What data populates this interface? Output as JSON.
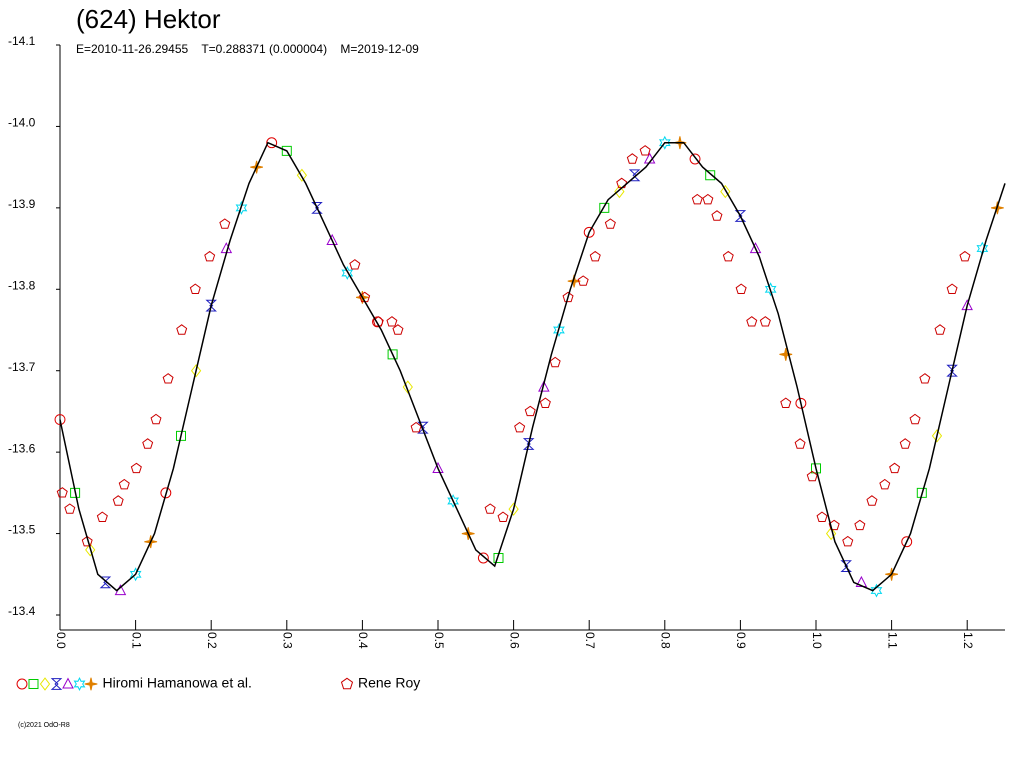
{
  "chart_data": {
    "type": "scatter",
    "title": "(624) Hektor",
    "subtitle": "E=2010-11-26.29455    T=0.288371 (0.000004)    M=2019-12-09",
    "footer": "(c)2021 OdO-R8",
    "xlim": [
      0,
      1.25
    ],
    "ylim": [
      -13.4,
      -14.1
    ],
    "xticks": [
      {
        "value": 0,
        "label": "0.0"
      },
      0.1,
      0.2,
      0.3,
      0.4,
      0.5,
      0.6,
      0.7,
      0.8,
      0.9,
      {
        "value": 1,
        "label": "1.0"
      },
      1.1,
      1.2
    ],
    "yticks": [
      -14.1,
      {
        "value": -14,
        "label": "-14.0"
      },
      -13.9,
      -13.8,
      -13.7,
      -13.6,
      -13.5,
      -13.4
    ],
    "series": [
      {
        "name": "Hiromi Hamanowa et al.",
        "styles": [
          {
            "marker": "circle",
            "color": "#e00000"
          },
          {
            "marker": "square",
            "color": "#00cc00"
          },
          {
            "marker": "diamond",
            "color": "#e8e800"
          },
          {
            "marker": "bowtie",
            "color": "#2020c0"
          },
          {
            "marker": "triangle",
            "color": "#9900cc"
          },
          {
            "marker": "star",
            "color": "#00d8f0"
          },
          {
            "marker": "cross",
            "color": "#e08000"
          }
        ],
        "x": [
          0.0,
          0.02,
          0.04,
          0.06,
          0.08,
          0.1,
          0.12,
          0.14,
          0.16,
          0.18,
          0.2,
          0.22,
          0.24,
          0.26,
          0.28,
          0.3,
          0.32,
          0.34,
          0.36,
          0.38,
          0.4,
          0.42,
          0.44,
          0.46,
          0.48,
          0.5,
          0.52,
          0.54,
          0.56,
          0.58,
          0.6,
          0.62,
          0.64,
          0.66,
          0.68,
          0.7,
          0.72,
          0.74,
          0.76,
          0.78,
          0.8,
          0.82,
          0.84,
          0.86,
          0.88,
          0.9,
          0.92,
          0.94,
          0.96,
          0.98,
          1.0,
          1.02,
          1.04,
          1.06,
          1.08,
          1.1,
          1.12,
          1.14,
          1.16,
          1.18,
          1.2,
          1.22,
          1.24
        ],
        "values": [
          -13.64,
          -13.55,
          -13.48,
          -13.44,
          -13.43,
          -13.45,
          -13.49,
          -13.55,
          -13.62,
          -13.7,
          -13.78,
          -13.85,
          -13.9,
          -13.95,
          -13.98,
          -13.97,
          -13.94,
          -13.9,
          -13.86,
          -13.82,
          -13.79,
          -13.76,
          -13.72,
          -13.68,
          -13.63,
          -13.58,
          -13.54,
          -13.5,
          -13.47,
          -13.47,
          -13.53,
          -13.61,
          -13.68,
          -13.75,
          -13.81,
          -13.87,
          -13.9,
          -13.92,
          -13.94,
          -13.96,
          -13.98,
          -13.98,
          -13.96,
          -13.94,
          -13.92,
          -13.89,
          -13.85,
          -13.8,
          -13.72,
          -13.66,
          -13.58,
          -13.5,
          -13.46,
          -13.44,
          -13.43,
          -13.45,
          -13.49,
          -13.55,
          -13.62,
          -13.7,
          -13.78,
          -13.85,
          -13.9
        ]
      },
      {
        "name": "Rene Roy",
        "marker": "pentagon",
        "color": "#cc0000",
        "x": [
          0.003,
          0.013,
          0.036,
          0.056,
          0.077,
          0.085,
          0.101,
          0.116,
          0.127,
          0.143,
          0.161,
          0.179,
          0.198,
          0.218,
          0.39,
          0.403,
          0.421,
          0.439,
          0.447,
          0.471,
          0.569,
          0.586,
          0.608,
          0.622,
          0.642,
          0.655,
          0.672,
          0.692,
          0.708,
          0.728,
          0.743,
          0.757,
          0.774,
          0.843,
          0.857,
          0.869,
          0.884,
          0.901,
          0.915,
          0.933,
          0.96,
          0.979,
          0.995,
          1.008,
          1.024,
          1.042,
          1.058,
          1.074,
          1.091,
          1.104,
          1.118,
          1.131,
          1.144,
          1.164,
          1.18,
          1.197
        ],
        "values": [
          -13.55,
          -13.53,
          -13.49,
          -13.52,
          -13.54,
          -13.56,
          -13.58,
          -13.61,
          -13.64,
          -13.69,
          -13.75,
          -13.8,
          -13.84,
          -13.88,
          -13.83,
          -13.79,
          -13.76,
          -13.76,
          -13.75,
          -13.63,
          -13.53,
          -13.52,
          -13.63,
          -13.65,
          -13.66,
          -13.71,
          -13.79,
          -13.81,
          -13.84,
          -13.88,
          -13.93,
          -13.96,
          -13.97,
          -13.91,
          -13.91,
          -13.89,
          -13.84,
          -13.8,
          -13.76,
          -13.76,
          -13.66,
          -13.61,
          -13.57,
          -13.52,
          -13.51,
          -13.49,
          -13.51,
          -13.54,
          -13.56,
          -13.58,
          -13.61,
          -13.64,
          -13.69,
          -13.75,
          -13.8,
          -13.84
        ]
      },
      {
        "type": "line",
        "color": "#000000",
        "x": [
          0,
          0.025,
          0.05,
          0.075,
          0.1,
          0.125,
          0.15,
          0.175,
          0.2,
          0.225,
          0.25,
          0.275,
          0.3,
          0.325,
          0.35,
          0.375,
          0.4,
          0.425,
          0.45,
          0.475,
          0.5,
          0.525,
          0.55,
          0.575,
          0.6,
          0.625,
          0.65,
          0.675,
          0.7,
          0.725,
          0.75,
          0.775,
          0.8,
          0.825,
          0.85,
          0.875,
          0.9,
          0.925,
          0.95,
          0.975,
          1,
          1.025,
          1.05,
          1.075,
          1.1,
          1.125,
          1.15,
          1.175,
          1.2,
          1.225,
          1.25
        ],
        "values": [
          -13.64,
          -13.53,
          -13.45,
          -13.43,
          -13.45,
          -13.5,
          -13.58,
          -13.68,
          -13.78,
          -13.86,
          -13.93,
          -13.98,
          -13.97,
          -13.93,
          -13.88,
          -13.83,
          -13.79,
          -13.75,
          -13.7,
          -13.64,
          -13.58,
          -13.53,
          -13.48,
          -13.46,
          -13.53,
          -13.63,
          -13.72,
          -13.8,
          -13.87,
          -13.91,
          -13.93,
          -13.95,
          -13.98,
          -13.98,
          -13.95,
          -13.93,
          -13.89,
          -13.84,
          -13.77,
          -13.68,
          -13.58,
          -13.49,
          -13.44,
          -13.43,
          -13.45,
          -13.5,
          -13.58,
          -13.68,
          -13.78,
          -13.86,
          -13.93
        ]
      }
    ]
  }
}
